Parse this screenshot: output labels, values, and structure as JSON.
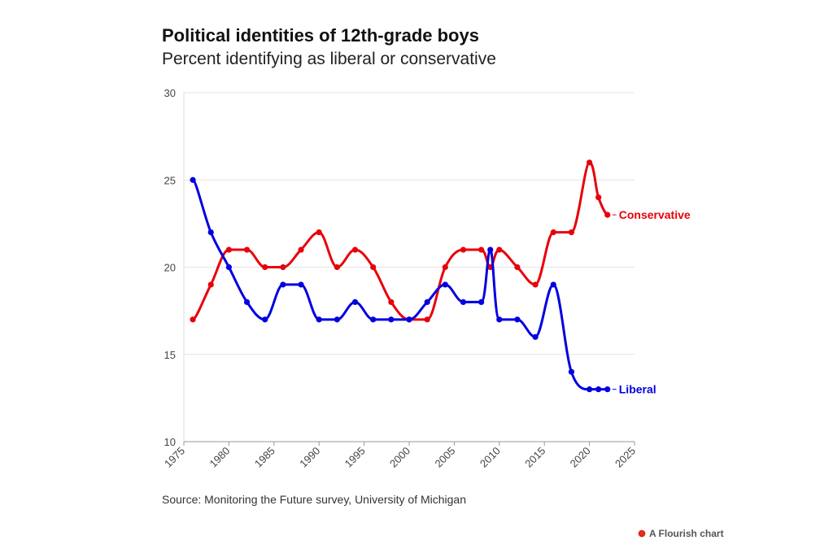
{
  "header": {
    "title": "Political identities of 12th-grade boys",
    "subtitle": "Percent identifying as liberal or conservative"
  },
  "footer": {
    "source": "Source: Monitoring the Future survey, University of Michigan",
    "credit": "A Flourish chart",
    "credit_icon": "flourish-logo-icon"
  },
  "chart_data": {
    "type": "line",
    "title": "Political identities of 12th-grade boys",
    "subtitle": "Percent identifying as liberal or conservative",
    "xlabel": "",
    "ylabel": "",
    "xlim": [
      1975,
      2025
    ],
    "ylim": [
      10,
      30
    ],
    "x_ticks": [
      "1975",
      "1980",
      "1985",
      "1990",
      "1995",
      "2000",
      "2005",
      "2010",
      "2015",
      "2020",
      "2025"
    ],
    "y_ticks": [
      "10",
      "15",
      "20",
      "25",
      "30"
    ],
    "grid": "horizontal",
    "legend": "direct labels at line ends",
    "series": [
      {
        "name": "Conservative",
        "color": "#e8000b",
        "points": [
          [
            1976,
            17
          ],
          [
            1978,
            19
          ],
          [
            1980,
            21
          ],
          [
            1982,
            21
          ],
          [
            1984,
            20
          ],
          [
            1986,
            20
          ],
          [
            1988,
            21
          ],
          [
            1990,
            22
          ],
          [
            1992,
            20
          ],
          [
            1994,
            21
          ],
          [
            1996,
            20
          ],
          [
            1998,
            18
          ],
          [
            2000,
            17
          ],
          [
            2002,
            17
          ],
          [
            2004,
            20
          ],
          [
            2006,
            21
          ],
          [
            2008,
            21
          ],
          [
            2009,
            20
          ],
          [
            2010,
            21
          ],
          [
            2012,
            20
          ],
          [
            2014,
            19
          ],
          [
            2016,
            22
          ],
          [
            2018,
            22
          ],
          [
            2020,
            26
          ],
          [
            2021,
            24
          ],
          [
            2022,
            23
          ]
        ]
      },
      {
        "name": "Liberal",
        "color": "#0000e0",
        "points": [
          [
            1976,
            25
          ],
          [
            1978,
            22
          ],
          [
            1980,
            20
          ],
          [
            1982,
            18
          ],
          [
            1984,
            17
          ],
          [
            1986,
            19
          ],
          [
            1988,
            19
          ],
          [
            1990,
            17
          ],
          [
            1992,
            17
          ],
          [
            1994,
            18
          ],
          [
            1996,
            17
          ],
          [
            1998,
            17
          ],
          [
            2000,
            17
          ],
          [
            2002,
            18
          ],
          [
            2004,
            19
          ],
          [
            2006,
            18
          ],
          [
            2008,
            18
          ],
          [
            2009,
            21
          ],
          [
            2010,
            17
          ],
          [
            2012,
            17
          ],
          [
            2014,
            16
          ],
          [
            2016,
            19
          ],
          [
            2018,
            14
          ],
          [
            2020,
            13
          ],
          [
            2021,
            13
          ],
          [
            2022,
            13
          ]
        ]
      }
    ]
  }
}
